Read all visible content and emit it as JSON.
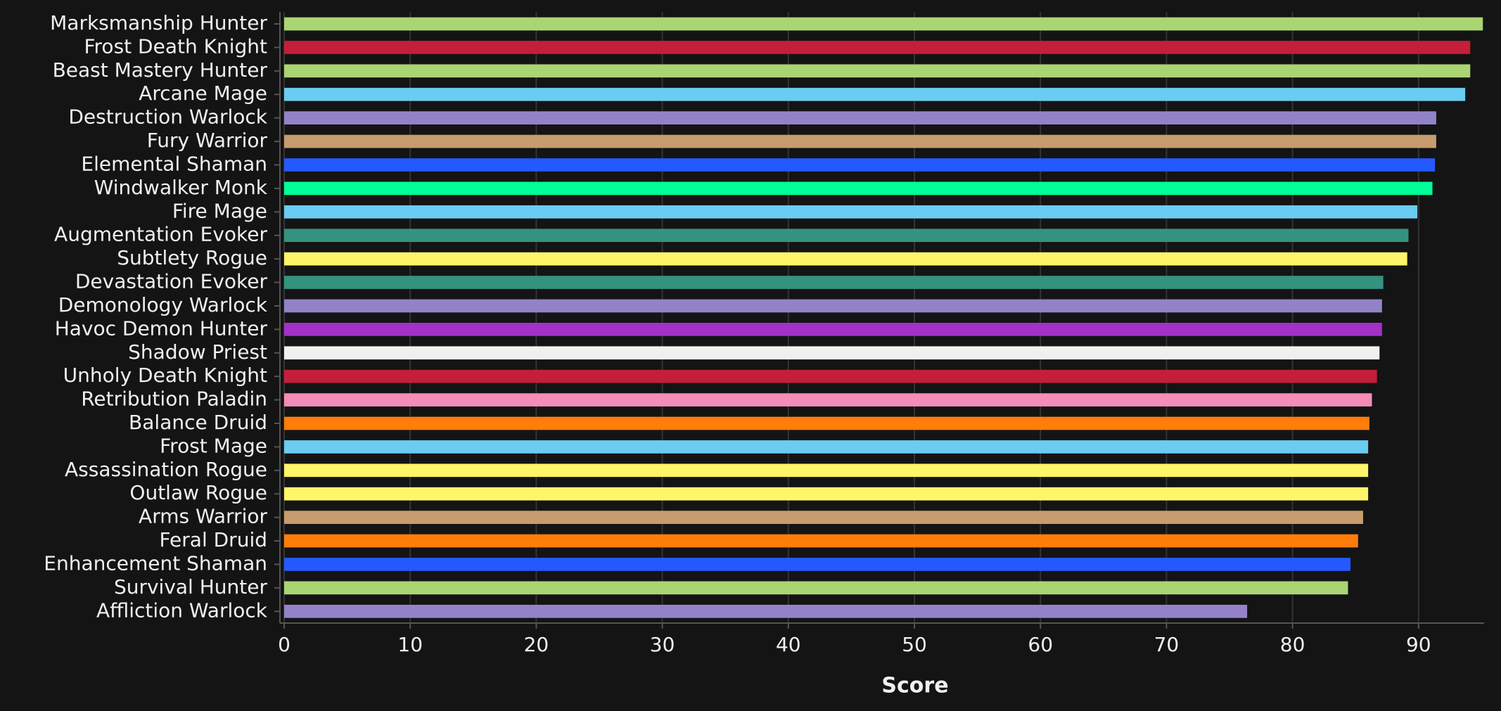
{
  "chart_data": {
    "type": "hbar",
    "xlabel": "Score",
    "categories": [
      "Marksmanship Hunter",
      "Frost Death Knight",
      "Beast Mastery Hunter",
      "Arcane Mage",
      "Destruction Warlock",
      "Fury Warrior",
      "Elemental Shaman",
      "Windwalker Monk",
      "Fire Mage",
      "Augmentation Evoker",
      "Subtlety Rogue",
      "Devastation Evoker",
      "Demonology Warlock",
      "Havoc Demon Hunter",
      "Shadow Priest",
      "Unholy Death Knight",
      "Retribution Paladin",
      "Balance Druid",
      "Frost Mage",
      "Assassination Rogue",
      "Outlaw Rogue",
      "Arms Warrior",
      "Feral Druid",
      "Enhancement Shaman",
      "Survival Hunter",
      "Affliction Warlock"
    ],
    "values": [
      95.1,
      94.1,
      94.1,
      93.7,
      91.4,
      91.4,
      91.3,
      91.1,
      89.9,
      89.2,
      89.1,
      87.2,
      87.1,
      87.1,
      86.9,
      86.7,
      86.3,
      86.1,
      86.0,
      86.0,
      86.0,
      85.6,
      85.2,
      84.6,
      84.4,
      76.4
    ],
    "colors": [
      "#abd473",
      "#c41e3a",
      "#abd473",
      "#69ccf0",
      "#9482c9",
      "#c79c6e",
      "#2459ff",
      "#00ff98",
      "#69ccf0",
      "#33937f",
      "#fff569",
      "#33937f",
      "#9482c9",
      "#a330c9",
      "#f0f0f0",
      "#c41e3a",
      "#f58cba",
      "#ff7d0a",
      "#69ccf0",
      "#fff569",
      "#fff569",
      "#c79c6e",
      "#ff7d0a",
      "#2459ff",
      "#abd473",
      "#9482c9"
    ],
    "xlim": [
      0,
      95.2
    ],
    "xticks": [
      0,
      10,
      20,
      30,
      40,
      50,
      60,
      70,
      80,
      90
    ],
    "grid": true
  }
}
